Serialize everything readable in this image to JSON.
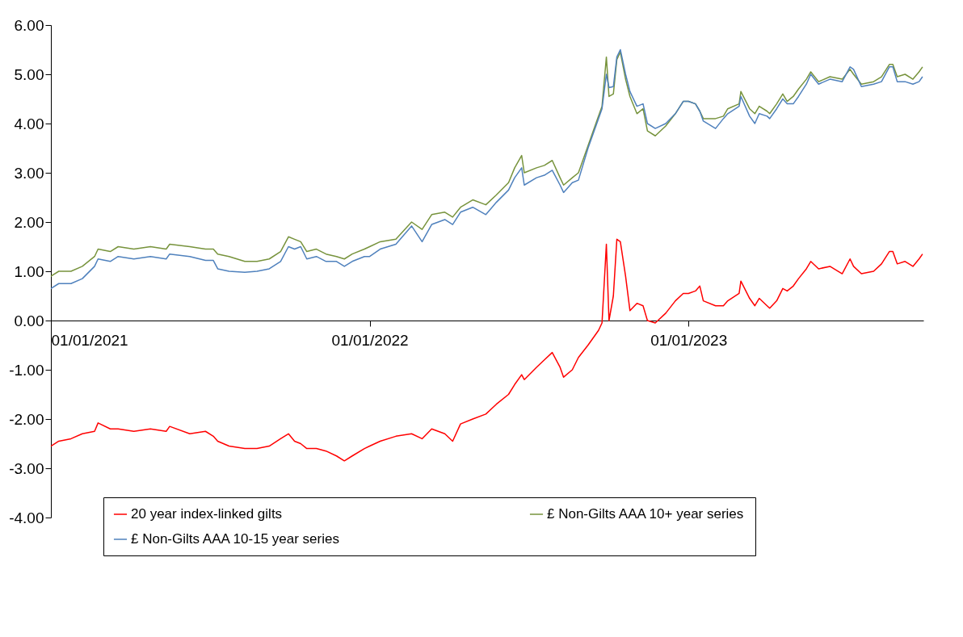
{
  "chart_data": {
    "type": "line",
    "x": [
      "2021-01-01",
      "2021-01-10",
      "2021-01-24",
      "2021-02-06",
      "2021-02-20",
      "2021-02-24",
      "2021-03-10",
      "2021-03-19",
      "2021-04-06",
      "2021-04-25",
      "2021-05-13",
      "2021-05-17",
      "2021-06-09",
      "2021-06-27",
      "2021-07-06",
      "2021-07-11",
      "2021-07-24",
      "2021-08-11",
      "2021-08-25",
      "2021-09-08",
      "2021-09-21",
      "2021-09-30",
      "2021-10-07",
      "2021-10-14",
      "2021-10-21",
      "2021-11-01",
      "2021-11-12",
      "2021-11-24",
      "2021-12-03",
      "2021-12-12",
      "2021-12-26",
      "2022-01-01",
      "2022-01-13",
      "2022-01-31",
      "2022-02-18",
      "2022-03-02",
      "2022-03-13",
      "2022-03-28",
      "2022-04-06",
      "2022-04-15",
      "2022-04-29",
      "2022-05-14",
      "2022-05-26",
      "2022-06-09",
      "2022-06-16",
      "2022-06-24",
      "2022-06-27",
      "2022-07-11",
      "2022-07-20",
      "2022-07-29",
      "2022-08-07",
      "2022-08-11",
      "2022-08-21",
      "2022-08-28",
      "2022-09-08",
      "2022-09-20",
      "2022-09-24",
      "2022-09-29",
      "2022-10-02",
      "2022-10-07",
      "2022-10-11",
      "2022-10-15",
      "2022-10-21",
      "2022-10-26",
      "2022-11-03",
      "2022-11-10",
      "2022-11-15",
      "2022-11-24",
      "2022-12-06",
      "2022-12-17",
      "2022-12-26",
      "2023-01-01",
      "2023-01-09",
      "2023-01-14",
      "2023-01-18",
      "2023-02-01",
      "2023-02-10",
      "2023-02-15",
      "2023-02-28",
      "2023-03-02",
      "2023-03-12",
      "2023-03-18",
      "2023-03-23",
      "2023-04-01",
      "2023-04-04",
      "2023-04-12",
      "2023-04-19",
      "2023-04-24",
      "2023-05-01",
      "2023-05-07",
      "2023-05-16",
      "2023-05-21",
      "2023-05-30",
      "2023-06-12",
      "2023-06-26",
      "2023-07-05",
      "2023-07-09",
      "2023-07-18",
      "2023-08-01",
      "2023-08-10",
      "2023-08-19",
      "2023-08-23",
      "2023-08-28",
      "2023-09-06",
      "2023-09-15",
      "2023-09-22",
      "2023-09-26"
    ],
    "series": [
      {
        "name": "20 year index-linked gilts",
        "color": "#ff0000",
        "values": [
          -2.55,
          -2.45,
          -2.4,
          -2.3,
          -2.25,
          -2.08,
          -2.2,
          -2.2,
          -2.25,
          -2.2,
          -2.25,
          -2.15,
          -2.3,
          -2.25,
          -2.35,
          -2.45,
          -2.55,
          -2.6,
          -2.6,
          -2.55,
          -2.4,
          -2.3,
          -2.45,
          -2.5,
          -2.6,
          -2.6,
          -2.65,
          -2.75,
          -2.85,
          -2.75,
          -2.6,
          -2.55,
          -2.45,
          -2.35,
          -2.3,
          -2.4,
          -2.2,
          -2.3,
          -2.45,
          -2.1,
          -2.0,
          -1.9,
          -1.7,
          -1.5,
          -1.3,
          -1.1,
          -1.2,
          -0.95,
          -0.8,
          -0.65,
          -0.95,
          -1.15,
          -1.0,
          -0.75,
          -0.5,
          -0.2,
          -0.05,
          1.55,
          0.0,
          0.5,
          1.65,
          1.6,
          0.9,
          0.2,
          0.35,
          0.3,
          0.0,
          -0.05,
          0.15,
          0.4,
          0.55,
          0.55,
          0.6,
          0.7,
          0.4,
          0.3,
          0.3,
          0.4,
          0.55,
          0.8,
          0.45,
          0.3,
          0.45,
          0.3,
          0.25,
          0.4,
          0.65,
          0.6,
          0.7,
          0.85,
          1.05,
          1.2,
          1.05,
          1.1,
          0.95,
          1.25,
          1.1,
          0.95,
          1.0,
          1.15,
          1.4,
          1.4,
          1.15,
          1.2,
          1.1,
          1.25,
          1.35
        ]
      },
      {
        "name": "£ Non-Gilts AAA 10+ year series",
        "color": "#77933c",
        "values": [
          0.9,
          1.0,
          1.0,
          1.1,
          1.3,
          1.45,
          1.4,
          1.5,
          1.45,
          1.5,
          1.45,
          1.55,
          1.5,
          1.45,
          1.45,
          1.35,
          1.3,
          1.2,
          1.2,
          1.25,
          1.4,
          1.7,
          1.65,
          1.6,
          1.4,
          1.45,
          1.35,
          1.3,
          1.25,
          1.35,
          1.45,
          1.5,
          1.6,
          1.65,
          2.0,
          1.85,
          2.15,
          2.2,
          2.1,
          2.3,
          2.45,
          2.35,
          2.55,
          2.8,
          3.1,
          3.35,
          3.0,
          3.1,
          3.15,
          3.25,
          2.9,
          2.75,
          2.9,
          3.0,
          3.55,
          4.15,
          4.35,
          5.35,
          4.55,
          4.6,
          5.3,
          5.45,
          4.9,
          4.55,
          4.2,
          4.3,
          3.85,
          3.75,
          3.95,
          4.2,
          4.45,
          4.45,
          4.4,
          4.25,
          4.1,
          4.1,
          4.15,
          4.3,
          4.4,
          4.65,
          4.3,
          4.2,
          4.35,
          4.25,
          4.2,
          4.4,
          4.6,
          4.45,
          4.55,
          4.7,
          4.9,
          5.05,
          4.85,
          4.95,
          4.9,
          5.1,
          5.0,
          4.8,
          4.85,
          4.95,
          5.2,
          5.2,
          4.95,
          5.0,
          4.9,
          5.05,
          5.15
        ]
      },
      {
        "name": "£ Non-Gilts AAA 10-15 year series",
        "color": "#4f81bd",
        "values": [
          0.65,
          0.75,
          0.75,
          0.85,
          1.1,
          1.25,
          1.2,
          1.3,
          1.25,
          1.3,
          1.25,
          1.35,
          1.3,
          1.22,
          1.22,
          1.05,
          1.0,
          0.98,
          1.0,
          1.05,
          1.2,
          1.5,
          1.45,
          1.5,
          1.25,
          1.3,
          1.2,
          1.2,
          1.1,
          1.2,
          1.3,
          1.3,
          1.45,
          1.55,
          1.92,
          1.6,
          1.95,
          2.05,
          1.95,
          2.2,
          2.3,
          2.15,
          2.4,
          2.65,
          2.9,
          3.1,
          2.75,
          2.9,
          2.95,
          3.05,
          2.75,
          2.6,
          2.8,
          2.85,
          3.5,
          4.1,
          4.3,
          5.0,
          4.73,
          4.75,
          5.35,
          5.5,
          5.0,
          4.65,
          4.35,
          4.4,
          4.0,
          3.9,
          4.0,
          4.2,
          4.45,
          4.45,
          4.4,
          4.25,
          4.05,
          3.9,
          4.1,
          4.2,
          4.35,
          4.55,
          4.15,
          4.0,
          4.2,
          4.15,
          4.1,
          4.3,
          4.5,
          4.4,
          4.4,
          4.55,
          4.8,
          5.0,
          4.8,
          4.9,
          4.85,
          5.15,
          5.1,
          4.75,
          4.8,
          4.85,
          5.15,
          5.15,
          4.85,
          4.85,
          4.8,
          4.85,
          4.95
        ]
      }
    ],
    "xlim": [
      "2021-01-01",
      "2023-09-27"
    ],
    "xticks": [
      {
        "value": "2021-01-01",
        "label": "01/01/2021"
      },
      {
        "value": "2022-01-01",
        "label": "01/01/2022"
      },
      {
        "value": "2023-01-01",
        "label": "01/01/2023"
      }
    ],
    "ylim": [
      -4,
      6
    ],
    "yticks": [
      {
        "value": -4,
        "label": "-4.00"
      },
      {
        "value": -3,
        "label": "-3.00"
      },
      {
        "value": -2,
        "label": "-2.00"
      },
      {
        "value": -1,
        "label": "-1.00"
      },
      {
        "value": 0,
        "label": "0.00"
      },
      {
        "value": 1,
        "label": "1.00"
      },
      {
        "value": 2,
        "label": "2.00"
      },
      {
        "value": 3,
        "label": "3.00"
      },
      {
        "value": 4,
        "label": "4.00"
      },
      {
        "value": 5,
        "label": "5.00"
      },
      {
        "value": 6,
        "label": "6.00"
      }
    ],
    "legend": "bottom",
    "grid": false,
    "marker": "none",
    "line_style": "solid"
  }
}
